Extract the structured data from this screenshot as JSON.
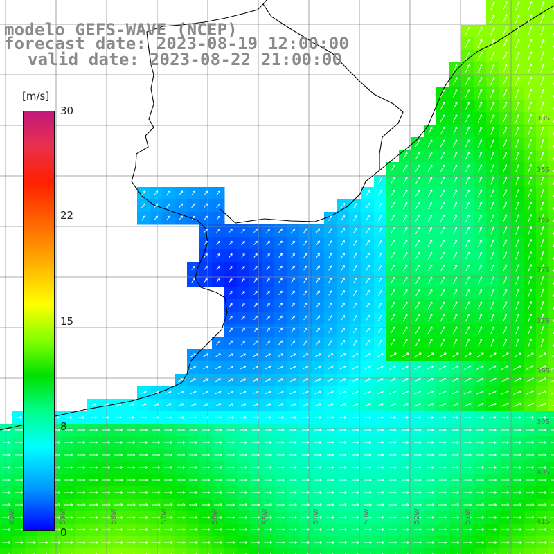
{
  "title": {
    "line1": "modelo GEFS-WAVE (NCEP)",
    "line2": "forecast date: 2023-08-19 12:00:00",
    "line3": "valid date: 2023-08-22 21:00:00"
  },
  "colorbar": {
    "unit": "[m/s]",
    "ticks": [
      "30",
      "22",
      "15",
      "8",
      "0"
    ]
  },
  "lat_labels": [
    "33S",
    "35S",
    "35S",
    "37S",
    "37S",
    "39S",
    "39S",
    "40S",
    "41S"
  ],
  "lon_labels": [
    "60W",
    "59W",
    "58W",
    "57W",
    "56W",
    "55W",
    "54W",
    "53W",
    "52W",
    "51W"
  ],
  "colors": {
    "background": "#ffffff",
    "grid": "#8c8c8c",
    "coast": "#000000",
    "arrow": "#ffffff",
    "title": "#8a8a8a"
  }
}
